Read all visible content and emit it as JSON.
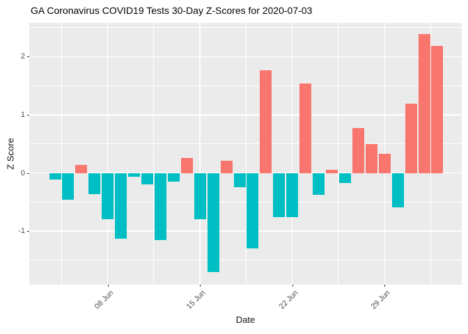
{
  "title": "GA Coronavirus COVID19 Tests 30-Day Z-Scores for 2020-07-03",
  "chart_data": {
    "type": "bar",
    "title": "GA Coronavirus COVID19 Tests 30-Day Z-Scores for 2020-07-03",
    "xlabel": "Date",
    "ylabel": "Z Score",
    "x": [
      "2020-06-04",
      "2020-06-05",
      "2020-06-06",
      "2020-06-07",
      "2020-06-08",
      "2020-06-09",
      "2020-06-10",
      "2020-06-11",
      "2020-06-12",
      "2020-06-13",
      "2020-06-14",
      "2020-06-15",
      "2020-06-16",
      "2020-06-17",
      "2020-06-18",
      "2020-06-19",
      "2020-06-20",
      "2020-06-21",
      "2020-06-22",
      "2020-06-23",
      "2020-06-24",
      "2020-06-25",
      "2020-06-26",
      "2020-06-27",
      "2020-06-28",
      "2020-06-29",
      "2020-06-30",
      "2020-07-01",
      "2020-07-02",
      "2020-07-03"
    ],
    "values": [
      -0.11,
      -0.46,
      0.14,
      -0.37,
      -0.79,
      -1.13,
      -0.06,
      -0.2,
      -1.15,
      -0.15,
      0.26,
      -0.79,
      -1.7,
      0.21,
      -0.25,
      -1.3,
      1.77,
      -0.76,
      -0.76,
      1.54,
      -0.38,
      0.06,
      -0.17,
      0.77,
      0.5,
      0.33,
      -0.59,
      1.19,
      2.39,
      2.18
    ],
    "ylim": [
      -1.92,
      2.58
    ],
    "y_major_ticks": [
      2,
      1,
      0,
      -1
    ],
    "y_minor_ticks": [
      2.5,
      1.5,
      0.5,
      -0.5,
      -1.5
    ],
    "x_tick_labels": [
      "08 Jun",
      "15 Jun",
      "22 Jun",
      "29 Jun"
    ],
    "x_tick_day_index": [
      4,
      11,
      18,
      25
    ],
    "x_minor_day_index": [
      0.5,
      7.5,
      14.5,
      21.5,
      28.5
    ],
    "grid": true,
    "legend_position": "none",
    "colors": {
      "positive": "#F8766D",
      "negative": "#00BFC4",
      "panel": "#EBEBEB",
      "gridline": "#FFFFFF",
      "axis_text": "#4D4D4D",
      "tick_mark": "#333333",
      "title_text": "#000000"
    }
  }
}
